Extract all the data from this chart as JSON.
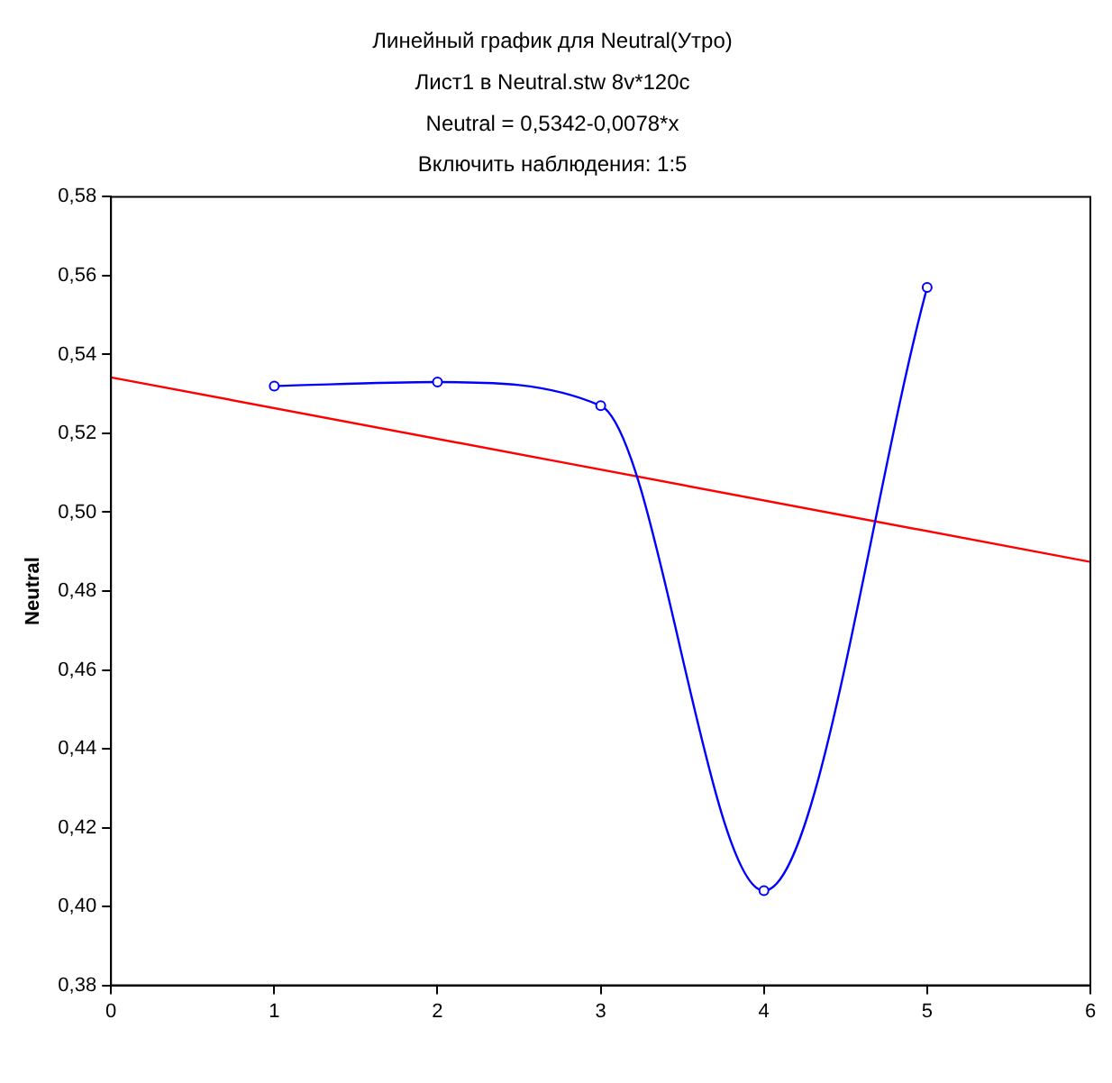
{
  "chart_data": {
    "type": "line",
    "title": [
      "Линейный график для Neutral(Утро)",
      "Лист1 в Neutral.stw 8v*120c",
      "Neutral = 0,5342-0,0078*x",
      "Включить наблюдения: 1:5"
    ],
    "ylabel": "Neutral",
    "x": [
      1,
      2,
      3,
      4,
      5
    ],
    "series": [
      {
        "color": "#0000ff",
        "values": [
          0.532,
          0.533,
          0.527,
          0.404,
          0.557
        ],
        "marker": "circle"
      },
      {
        "type": "line",
        "color": "#ff0000",
        "x": [
          0,
          6
        ],
        "values": [
          0.5342,
          0.4874
        ],
        "marker": "none"
      }
    ],
    "xlim": [
      0,
      6
    ],
    "xticks": [
      0,
      1,
      2,
      3,
      4,
      5,
      6
    ],
    "ylim": [
      0.38,
      0.58
    ],
    "yticks": [
      {
        "value": 0.38,
        "label": "0,38"
      },
      {
        "value": 0.4,
        "label": "0,40"
      },
      {
        "value": 0.42,
        "label": "0,42"
      },
      {
        "value": 0.44,
        "label": "0,44"
      },
      {
        "value": 0.46,
        "label": "0,46"
      },
      {
        "value": 0.48,
        "label": "0,48"
      },
      {
        "value": 0.5,
        "label": "0,50"
      },
      {
        "value": 0.52,
        "label": "0,52"
      },
      {
        "value": 0.54,
        "label": "0,54"
      },
      {
        "value": 0.56,
        "label": "0,56"
      },
      {
        "value": 0.58,
        "label": "0,58"
      }
    ],
    "grid": false,
    "legend": false
  }
}
